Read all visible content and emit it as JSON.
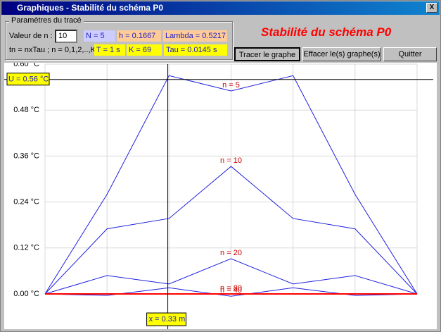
{
  "window": {
    "title": "Graphiques - Stabilité du schéma P0",
    "close": "X"
  },
  "params": {
    "group_title": "Paramètres du tracé",
    "n_label": "Valeur de n :",
    "n_value": "10",
    "N": "N = 5",
    "h": "h = 0.1667",
    "lambda": "Lambda = 0.5217",
    "formula": "tn = nxTau ; n = 0,1,2,..,K",
    "T": "T = 1 s",
    "K": "K = 69",
    "tau": "Tau = 0.0145 s"
  },
  "heading": "Stabilité du schéma P0",
  "buttons": [
    "Tracer le graphe",
    "Effacer le(s) graphe(s)",
    "Quitter"
  ],
  "chart_data": {
    "type": "line",
    "x": [
      0,
      0.1667,
      0.3333,
      0.5,
      0.6667,
      0.8333,
      1
    ],
    "xlim": [
      0,
      1
    ],
    "ylim": [
      0,
      0.6
    ],
    "yticks": [
      {
        "value": 0,
        "label": "0.00 °C"
      },
      {
        "value": 0.12,
        "label": "0.12 °C"
      },
      {
        "value": 0.24,
        "label": "0.24 °C"
      },
      {
        "value": 0.36,
        "label": "0.36 °C"
      },
      {
        "value": 0.48,
        "label": "0.48 °C"
      },
      {
        "value": 0.6,
        "label": "0.60 °C"
      }
    ],
    "grid": true,
    "series": [
      {
        "name": "n = 5",
        "color": "#2020e0",
        "values": [
          0,
          0.26,
          0.57,
          0.53,
          0.57,
          0.26,
          0
        ]
      },
      {
        "name": "n = 10",
        "color": "#2020e0",
        "values": [
          0,
          0.17,
          0.197,
          0.333,
          0.197,
          0.17,
          0
        ]
      },
      {
        "name": "n = 20",
        "color": "#2020e0",
        "values": [
          0,
          0.048,
          0.026,
          0.092,
          0.026,
          0.048,
          0
        ]
      },
      {
        "name": "n = 40",
        "color": "#2020e0",
        "values": [
          0,
          -0.004,
          0.016,
          -0.006,
          0.016,
          -0.004,
          0
        ]
      },
      {
        "name": "n = 80",
        "color": "#ff0000",
        "values": [
          0,
          0,
          0,
          0,
          0,
          0,
          0
        ]
      }
    ],
    "cursor": {
      "x": 0.33,
      "y": 0.56,
      "x_label": "x = 0.33 m",
      "y_label": "U = 0.56 °C"
    }
  }
}
